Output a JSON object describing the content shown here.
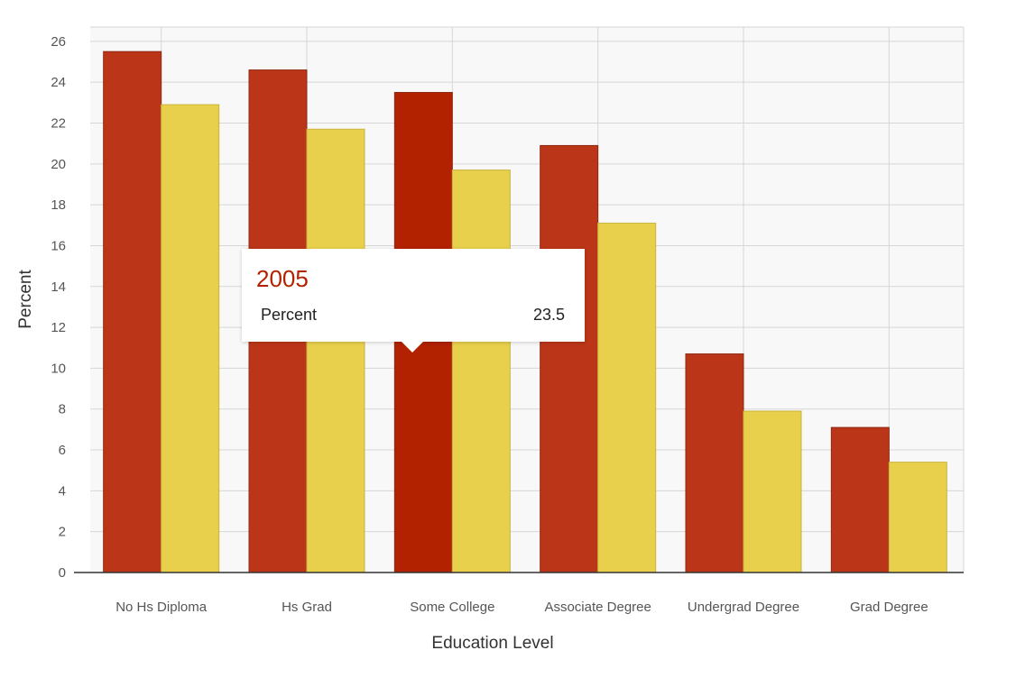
{
  "chart_data": {
    "type": "bar",
    "title": "",
    "xlabel": "Education Level",
    "ylabel": "Percent",
    "ylim": [
      0,
      26.7
    ],
    "yticks": [
      0,
      2,
      4,
      6,
      8,
      10,
      12,
      14,
      16,
      18,
      20,
      22,
      24,
      26
    ],
    "grid": true,
    "categories": [
      "No Hs Diploma",
      "Hs Grad",
      "Some College",
      "Associate Degree",
      "Undergrad Degree",
      "Grad Degree"
    ],
    "series": [
      {
        "values": [
          25.5,
          24.6,
          23.5,
          20.9,
          10.7,
          7.1
        ],
        "color": "#bb3618",
        "highlight_color": "#b22200"
      },
      {
        "values": [
          22.9,
          21.7,
          19.7,
          17.1,
          7.9,
          5.4
        ],
        "color": "#e8d04c"
      }
    ],
    "highlight": {
      "series": 0,
      "category": 2
    }
  },
  "tooltip": {
    "title": "2005",
    "label": "Percent",
    "value": "23.5"
  }
}
